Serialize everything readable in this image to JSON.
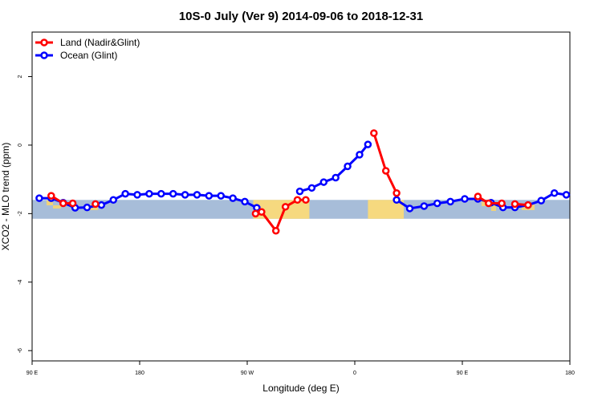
{
  "chart_data": {
    "type": "line",
    "title": "10S-0 July (Ver 9)   2014-09-06 to 2018-12-31",
    "xlabel": "Longitude (deg E)",
    "ylabel": "XCO2 - MLO trend (ppm)",
    "xlim": [
      90,
      540
    ],
    "ylim": [
      -6.3,
      3.3
    ],
    "x_ticks": [
      {
        "value": 90,
        "label": "90 E"
      },
      {
        "value": 180,
        "label": "180"
      },
      {
        "value": 270,
        "label": "90 W"
      },
      {
        "value": 360,
        "label": "0"
      },
      {
        "value": 450,
        "label": "90 E"
      },
      {
        "value": 540,
        "label": "180"
      }
    ],
    "y_ticks": [
      {
        "value": 2,
        "label": "2"
      },
      {
        "value": 0,
        "label": "0"
      },
      {
        "value": -2,
        "label": "-2"
      },
      {
        "value": -4,
        "label": "-4"
      },
      {
        "value": -6,
        "label": "-6"
      }
    ],
    "grid": false,
    "legend_position": "top-left",
    "band": {
      "y_min": -2.15,
      "y_max": -1.6
    },
    "series": [
      {
        "name": "Land (Nadir&Glint)",
        "color": "#ff0000",
        "segments": [
          [
            [
              106,
              -1.48
            ],
            [
              116,
              -1.7
            ],
            [
              124,
              -1.7
            ]
          ],
          [
            [
              143,
              -1.72
            ]
          ],
          [
            [
              277,
              -2.0
            ],
            [
              282,
              -1.95
            ],
            [
              294,
              -2.5
            ],
            [
              302,
              -1.8
            ],
            [
              312,
              -1.6
            ],
            [
              319,
              -1.6
            ]
          ],
          [
            [
              376,
              0.35
            ],
            [
              386,
              -0.75
            ],
            [
              395,
              -1.4
            ]
          ],
          [
            [
              463,
              -1.5
            ],
            [
              472,
              -1.7
            ],
            [
              483,
              -1.7
            ]
          ],
          [
            [
              494,
              -1.72
            ],
            [
              505,
              -1.75
            ]
          ]
        ]
      },
      {
        "name": "Ocean (Glint)",
        "color": "#0000ff",
        "segments": [
          [
            [
              96,
              -1.55
            ],
            [
              106,
              -1.55
            ],
            [
              116,
              -1.68
            ],
            [
              126,
              -1.83
            ],
            [
              136,
              -1.82
            ],
            [
              148,
              -1.75
            ],
            [
              158,
              -1.6
            ],
            [
              168,
              -1.42
            ],
            [
              178,
              -1.45
            ],
            [
              188,
              -1.42
            ],
            [
              198,
              -1.42
            ],
            [
              208,
              -1.42
            ],
            [
              218,
              -1.45
            ],
            [
              228,
              -1.45
            ],
            [
              238,
              -1.48
            ],
            [
              248,
              -1.48
            ],
            [
              258,
              -1.55
            ],
            [
              268,
              -1.65
            ],
            [
              278,
              -1.83
            ]
          ],
          [
            [
              314,
              -1.35
            ],
            [
              324,
              -1.25
            ],
            [
              334,
              -1.08
            ],
            [
              344,
              -0.95
            ],
            [
              354,
              -0.62
            ],
            [
              364,
              -0.28
            ],
            [
              371,
              0.02
            ]
          ],
          [
            [
              395,
              -1.6
            ],
            [
              406,
              -1.85
            ],
            [
              418,
              -1.78
            ],
            [
              429,
              -1.7
            ],
            [
              440,
              -1.65
            ],
            [
              452,
              -1.57
            ],
            [
              463,
              -1.57
            ],
            [
              474,
              -1.68
            ],
            [
              484,
              -1.82
            ],
            [
              494,
              -1.82
            ],
            [
              505,
              -1.75
            ],
            [
              516,
              -1.62
            ],
            [
              527,
              -1.4
            ],
            [
              537,
              -1.45
            ]
          ]
        ]
      }
    ],
    "land_blocks": [
      {
        "x_min": 275,
        "x_max": 322
      },
      {
        "x_min": 371,
        "x_max": 401
      }
    ]
  }
}
